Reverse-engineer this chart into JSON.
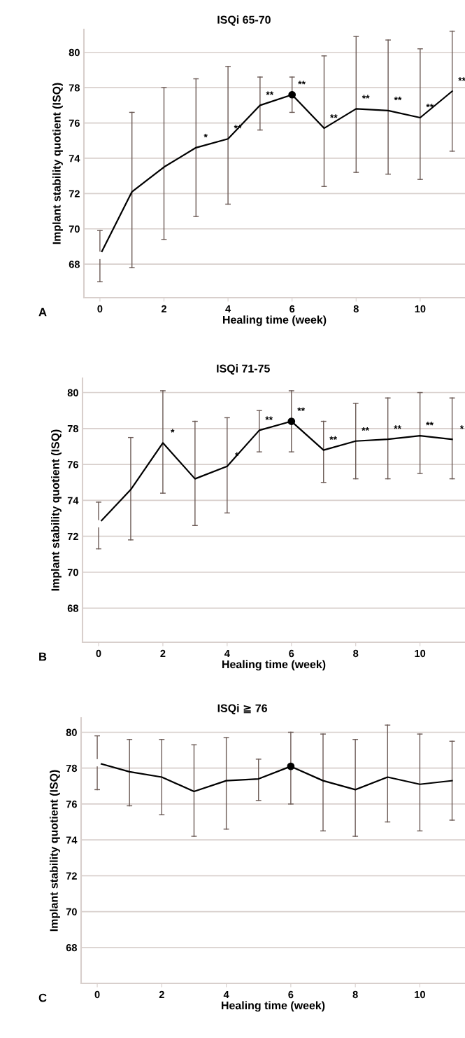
{
  "chart_data": [
    {
      "type": "line",
      "title": "ISQi 65-70",
      "xlabel": "Healing time (week)",
      "ylabel": "Implant stability quotient (ISQ)",
      "xlim": [
        -0.5,
        11.4
      ],
      "xticks": [
        0,
        2,
        4,
        6,
        8,
        10
      ],
      "ylim": [
        66.1,
        81.3
      ],
      "yticks": [
        68,
        70,
        72,
        74,
        76,
        78,
        80
      ],
      "grid": "y",
      "marker": "none",
      "series": [
        {
          "color": "#000000",
          "x": [
            0,
            1,
            2,
            3,
            4,
            5,
            6,
            7,
            8,
            9,
            10,
            11
          ],
          "values": [
            68.5,
            72.1,
            73.5,
            74.6,
            75.1,
            77.0,
            77.6,
            75.7,
            76.8,
            76.7,
            76.3,
            77.8
          ],
          "errors": [
            [
              67.0,
              69.9
            ],
            [
              67.8,
              76.6
            ],
            [
              69.4,
              78.0
            ],
            [
              70.7,
              78.5
            ],
            [
              71.4,
              79.2
            ],
            [
              75.6,
              78.6
            ],
            [
              76.6,
              78.6
            ],
            [
              72.4,
              79.8
            ],
            [
              73.2,
              80.9
            ],
            [
              73.1,
              80.7
            ],
            [
              72.8,
              80.2
            ],
            [
              74.4,
              81.2
            ]
          ]
        },
        {
          "type": "scatter",
          "marker": "circle",
          "x": [
            0,
            6
          ],
          "values": [
            68.5,
            77.6
          ],
          "colors": [
            "#ffffff",
            "#000000"
          ]
        }
      ],
      "annotations": [
        {
          "text": "*",
          "x": 3,
          "y": 74.6
        },
        {
          "text": "**",
          "x": 4,
          "y": 75.1
        },
        {
          "text": "**",
          "x": 5,
          "y": 77.0
        },
        {
          "text": "**",
          "x": 6,
          "y": 77.6
        },
        {
          "text": "**",
          "x": 7,
          "y": 75.7
        },
        {
          "text": "**",
          "x": 8,
          "y": 76.8
        },
        {
          "text": "**",
          "x": 9,
          "y": 76.7
        },
        {
          "text": "**",
          "x": 10,
          "y": 76.3
        },
        {
          "text": "**",
          "x": 11,
          "y": 77.8
        },
        "A"
      ]
    },
    {
      "type": "line",
      "title": "ISQi 71-75",
      "xlabel": "Healing time (week)",
      "ylabel": "Implant stability quotient (ISQ)",
      "xlim": [
        -0.5,
        11.4
      ],
      "xticks": [
        0,
        2,
        4,
        6,
        8,
        10
      ],
      "ylim": [
        66.1,
        80.8
      ],
      "yticks": [
        68,
        70,
        72,
        74,
        76,
        78,
        80
      ],
      "grid": "y",
      "marker": "none",
      "series": [
        {
          "color": "#000000",
          "x": [
            0,
            1,
            2,
            3,
            4,
            5,
            6,
            7,
            8,
            9,
            10,
            11
          ],
          "values": [
            72.7,
            74.6,
            77.2,
            75.2,
            75.9,
            77.9,
            78.4,
            76.8,
            77.3,
            77.4,
            77.6,
            77.4
          ],
          "errors": [
            [
              71.3,
              73.9
            ],
            [
              71.8,
              77.5
            ],
            [
              74.4,
              80.1
            ],
            [
              72.6,
              78.4
            ],
            [
              73.3,
              78.6
            ],
            [
              76.7,
              79.0
            ],
            [
              76.7,
              80.1
            ],
            [
              75.0,
              78.4
            ],
            [
              75.2,
              79.4
            ],
            [
              75.2,
              79.7
            ],
            [
              75.5,
              80.0
            ],
            [
              75.2,
              79.7
            ]
          ]
        },
        {
          "type": "scatter",
          "marker": "circle",
          "x": [
            0,
            6
          ],
          "values": [
            72.7,
            78.4
          ],
          "colors": [
            "#ffffff",
            "#000000"
          ]
        }
      ],
      "annotations": [
        {
          "text": "*",
          "x": 2,
          "y": 77.2
        },
        {
          "text": "*",
          "x": 4,
          "y": 75.9
        },
        {
          "text": "**",
          "x": 5,
          "y": 77.9
        },
        {
          "text": "**",
          "x": 6,
          "y": 78.4
        },
        {
          "text": "**",
          "x": 7,
          "y": 76.8
        },
        {
          "text": "**",
          "x": 8,
          "y": 77.3
        },
        {
          "text": "**",
          "x": 9,
          "y": 77.4
        },
        {
          "text": "**",
          "x": 10,
          "y": 77.6
        },
        {
          "text": "*",
          "x": 11,
          "y": 77.4
        },
        "B"
      ]
    },
    {
      "type": "line",
      "title": "ISQi ≧ 76",
      "xlabel": "Healing time (week)",
      "ylabel": "Implant stability quotient (ISQ)",
      "xlim": [
        -0.5,
        11.4
      ],
      "xticks": [
        0,
        2,
        4,
        6,
        8,
        10
      ],
      "ylim": [
        66.0,
        80.8
      ],
      "yticks": [
        68,
        70,
        72,
        74,
        76,
        78,
        80
      ],
      "grid": "y",
      "marker": "none",
      "series": [
        {
          "color": "#000000",
          "x": [
            0,
            1,
            2,
            3,
            4,
            5,
            6,
            7,
            8,
            9,
            10,
            11
          ],
          "values": [
            78.3,
            77.8,
            77.5,
            76.7,
            77.3,
            77.4,
            78.1,
            77.3,
            76.8,
            77.5,
            77.1,
            77.3
          ],
          "errors": [
            [
              76.8,
              79.8
            ],
            [
              75.9,
              79.6
            ],
            [
              75.4,
              79.6
            ],
            [
              74.2,
              79.3
            ],
            [
              74.6,
              79.7
            ],
            [
              76.2,
              78.5
            ],
            [
              76.0,
              80.0
            ],
            [
              74.5,
              79.9
            ],
            [
              74.2,
              79.6
            ],
            [
              75.0,
              80.4
            ],
            [
              74.5,
              79.9
            ],
            [
              75.1,
              79.5
            ]
          ]
        },
        {
          "type": "scatter",
          "marker": "circle",
          "x": [
            0,
            6
          ],
          "values": [
            78.3,
            78.1
          ],
          "colors": [
            "#ffffff",
            "#000000"
          ]
        }
      ],
      "annotations": [
        "C"
      ]
    }
  ]
}
